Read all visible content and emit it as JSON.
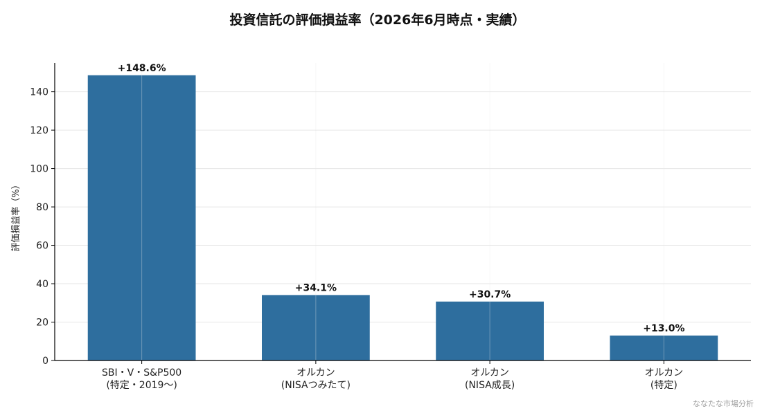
{
  "chart_data": {
    "type": "bar",
    "title": "投資信託の評価損益率（2026年6月時点・実績）",
    "ylabel": "評価損益率（%）",
    "xlabel": "",
    "categories": [
      [
        "SBI・V・S&P500",
        "(特定・2019〜)"
      ],
      [
        "オルカン",
        "(NISAつみたて)"
      ],
      [
        "オルカン",
        "(NISA成長)"
      ],
      [
        "オルカン",
        "(特定)"
      ]
    ],
    "values": [
      148.6,
      34.1,
      30.7,
      13.0
    ],
    "data_labels": [
      "+148.6%",
      "+34.1%",
      "+30.7%",
      "+13.0%"
    ],
    "ylim": [
      0,
      155
    ],
    "yticks": [
      0,
      20,
      40,
      60,
      80,
      100,
      120,
      140
    ],
    "grid": true,
    "bar_color": "#2e6e9e",
    "grid_color": "#e6e6e6",
    "axis_color": "#000000"
  },
  "credit": "ななたな市場分析"
}
